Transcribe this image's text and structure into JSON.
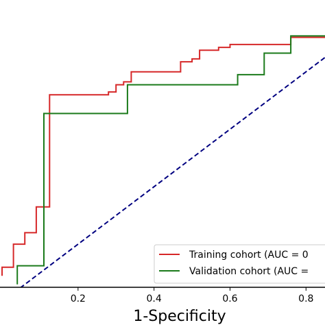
{
  "chart_data": {
    "type": "line",
    "title": "",
    "xlabel": "1-Specificity",
    "ylabel": "",
    "xlim": [
      0.0,
      0.85
    ],
    "ylim": [
      0.05,
      1.05
    ],
    "xticks": [
      {
        "value": 0.2,
        "label": "0.2"
      },
      {
        "value": 0.4,
        "label": "0.4"
      },
      {
        "value": 0.6,
        "label": "0.6"
      },
      {
        "value": 0.8,
        "label": "0.8"
      }
    ],
    "grid": false,
    "legend_position": "bottom-right",
    "series": [
      {
        "name": "Training cohort (AUC = 0",
        "color": "#d62728",
        "style": "solid",
        "x": [
          0.0,
          0.0,
          0.03,
          0.03,
          0.06,
          0.06,
          0.09,
          0.09,
          0.125,
          0.125,
          0.28,
          0.28,
          0.3,
          0.3,
          0.32,
          0.32,
          0.34,
          0.34,
          0.47,
          0.47,
          0.5,
          0.5,
          0.52,
          0.52,
          0.57,
          0.57,
          0.6,
          0.6,
          0.76,
          0.76,
          0.85
        ],
        "y": [
          0.09,
          0.12,
          0.12,
          0.2,
          0.2,
          0.24,
          0.24,
          0.33,
          0.33,
          0.72,
          0.72,
          0.73,
          0.73,
          0.755,
          0.755,
          0.765,
          0.765,
          0.8,
          0.8,
          0.835,
          0.835,
          0.845,
          0.845,
          0.875,
          0.875,
          0.885,
          0.885,
          0.895,
          0.895,
          0.92,
          0.92
        ]
      },
      {
        "name": "Validation cohort (AUC =",
        "color": "#1a7a1a",
        "style": "solid",
        "x": [
          0.04,
          0.04,
          0.11,
          0.11,
          0.33,
          0.33,
          0.62,
          0.62,
          0.69,
          0.69,
          0.76,
          0.76,
          0.85
        ],
        "y": [
          0.06,
          0.125,
          0.125,
          0.655,
          0.655,
          0.755,
          0.755,
          0.79,
          0.79,
          0.865,
          0.865,
          0.925,
          0.925
        ]
      },
      {
        "name": "",
        "color": "#000080",
        "style": "dashed",
        "x": [
          0.0,
          0.85
        ],
        "y": [
          0.0,
          0.85
        ]
      }
    ]
  },
  "legend": {
    "items": [
      {
        "label": "Training cohort (AUC = 0",
        "color": "#d62728"
      },
      {
        "label": "Validation cohort (AUC =",
        "color": "#1a7a1a"
      }
    ]
  }
}
